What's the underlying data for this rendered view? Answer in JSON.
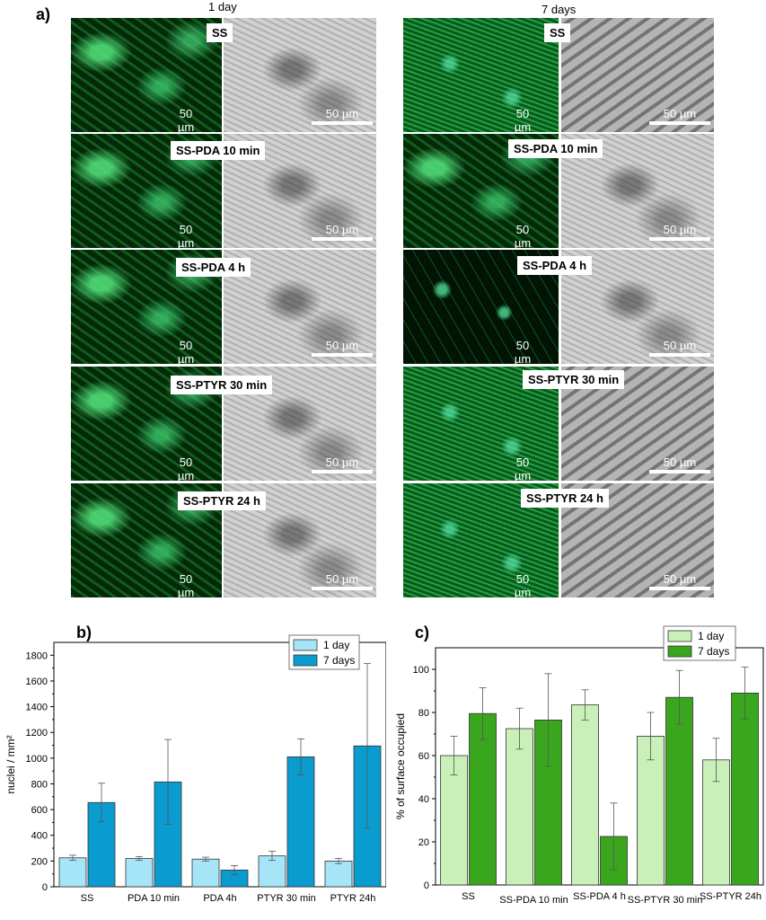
{
  "panel_a": {
    "label": "a)",
    "col_left_title": "1 day",
    "col_right_title": "7 days",
    "scale_text": "50 µm",
    "rows_left": [
      "SS",
      "SS-PDA 10 min",
      "SS-PDA 4 h",
      "SS-PTYR 30 min",
      "SS-PTYR 24 h"
    ],
    "rows_right": [
      "SS",
      "SS-PDA 10 min",
      "SS-PDA 4 h",
      "SS-PTYR 30 min",
      "SS-PTYR 24 h"
    ]
  },
  "chart_data": [
    {
      "panel_label": "b)",
      "type": "bar",
      "categories": [
        "SS",
        "PDA 10 min",
        "PDA 4h",
        "PTYR 30 min",
        "PTYR 24h"
      ],
      "series": [
        {
          "name": "1 day",
          "values": [
            225,
            220,
            215,
            240,
            200
          ],
          "errors": [
            20,
            15,
            15,
            35,
            20
          ],
          "color": "#a6e4f8"
        },
        {
          "name": "7 days",
          "values": [
            655,
            815,
            130,
            1010,
            1095
          ],
          "errors": [
            150,
            330,
            35,
            140,
            640
          ],
          "color": "#0a9bcf"
        }
      ],
      "ylabel": "nuclei / mm²",
      "ylim": [
        0,
        1900
      ],
      "yticks": [
        "0",
        "200",
        "400",
        "600",
        "800",
        "1000",
        "1200",
        "1400",
        "1600",
        "1800"
      ],
      "legend": "top-right"
    },
    {
      "panel_label": "c)",
      "type": "bar",
      "categories": [
        "SS",
        "SS-PDA 10 min",
        "SS-PDA 4 h",
        "SS-PTYR 30 min",
        "SS-PTYR 24h"
      ],
      "series": [
        {
          "name": "1 day",
          "values": [
            60,
            72.5,
            83.5,
            69,
            58
          ],
          "errors": [
            9,
            9.5,
            7,
            11,
            10
          ],
          "color": "#c8f0b8"
        },
        {
          "name": "7 days",
          "values": [
            79.5,
            76.5,
            22.5,
            87,
            89
          ],
          "errors": [
            12,
            21.5,
            15.5,
            12.5,
            12
          ],
          "color": "#3aa61e"
        }
      ],
      "ylabel": "% of surface occupied",
      "ylim": [
        0,
        110
      ],
      "yticks": [
        "0",
        "20",
        "40",
        "60",
        "80",
        "100"
      ],
      "legend": "top-right"
    }
  ]
}
